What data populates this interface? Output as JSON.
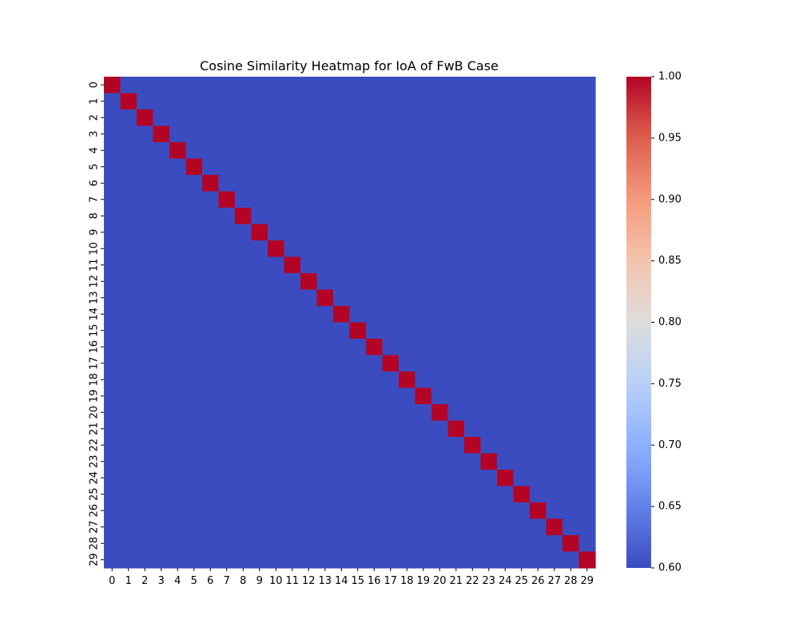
{
  "chart_data": {
    "type": "heatmap",
    "title": "Cosine Similarity Heatmap for IoA of FwB Case",
    "xlabel": "",
    "ylabel": "",
    "x_categories": [
      "0",
      "1",
      "2",
      "3",
      "4",
      "5",
      "6",
      "7",
      "8",
      "9",
      "10",
      "11",
      "12",
      "13",
      "14",
      "15",
      "16",
      "17",
      "18",
      "19",
      "20",
      "21",
      "22",
      "23",
      "24",
      "25",
      "26",
      "27",
      "28",
      "29"
    ],
    "y_categories": [
      "0",
      "1",
      "2",
      "3",
      "4",
      "5",
      "6",
      "7",
      "8",
      "9",
      "10",
      "11",
      "12",
      "13",
      "14",
      "15",
      "16",
      "17",
      "18",
      "19",
      "20",
      "21",
      "22",
      "23",
      "24",
      "25",
      "26",
      "27",
      "28",
      "29"
    ],
    "values_description": "identity pattern: diagonal cells equal 1.0, all off-diagonal cells at or below 0.6",
    "diagonal_value": 1.0,
    "off_diagonal_value": 0.6,
    "colorbar": {
      "colormap": "coolwarm",
      "vmin": 0.6,
      "vmax": 1.0,
      "ticks": [
        "0.60",
        "0.65",
        "0.70",
        "0.75",
        "0.80",
        "0.85",
        "0.90",
        "0.95",
        "1.00"
      ],
      "low_color": "#3b4cc0",
      "high_color": "#b40426"
    },
    "grid": false
  }
}
